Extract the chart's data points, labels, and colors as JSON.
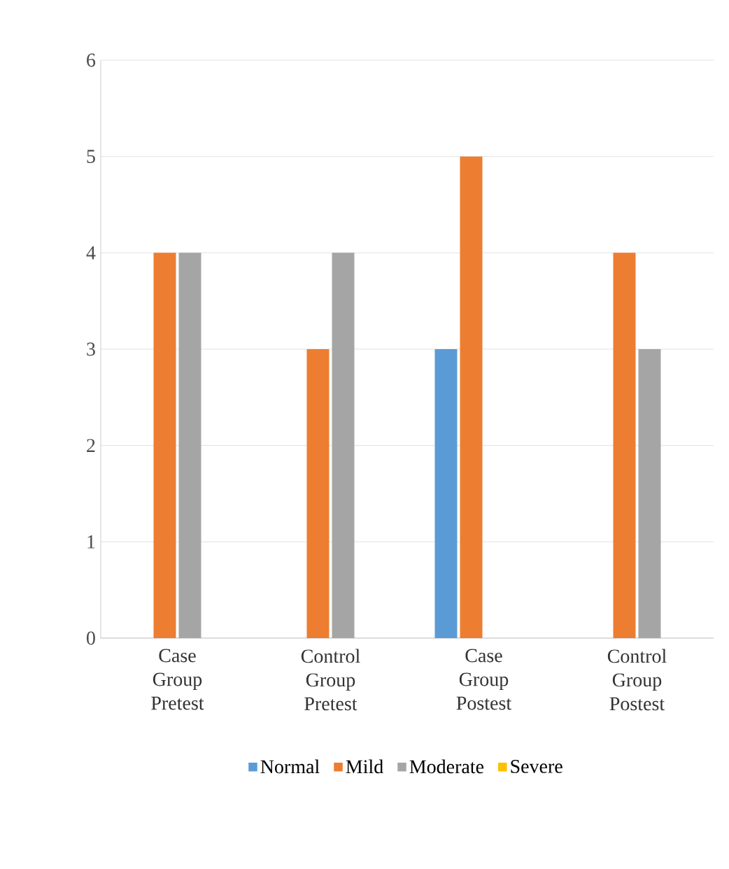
{
  "chart_data": {
    "type": "bar",
    "categories": [
      "Case Group Pretest",
      "Control Group Pretest",
      "Case Group Postest",
      "Control Group Postest"
    ],
    "series": [
      {
        "name": "Normal",
        "color": "#5b9bd5",
        "values": [
          0,
          0,
          3,
          0
        ]
      },
      {
        "name": "Mild",
        "color": "#ed7d31",
        "values": [
          4,
          3,
          5,
          4
        ]
      },
      {
        "name": "Moderate",
        "color": "#a5a5a5",
        "values": [
          4,
          4,
          0,
          3
        ]
      },
      {
        "name": "Severe",
        "color": "#ffc000",
        "values": [
          0,
          0,
          0,
          0
        ]
      }
    ],
    "ylim": [
      0,
      6
    ],
    "yticks": [
      0,
      1,
      2,
      3,
      4,
      5,
      6
    ],
    "grid": "y",
    "legend": "bottom"
  }
}
